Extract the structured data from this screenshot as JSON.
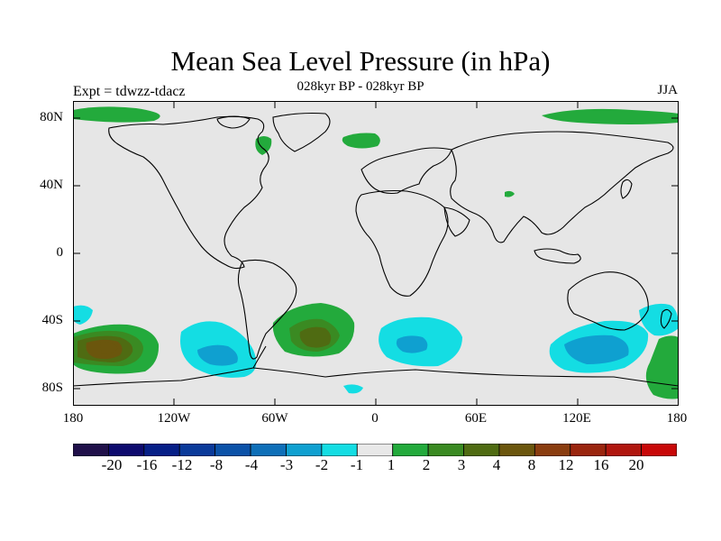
{
  "header": {
    "title": "Mean Sea Level Pressure (in hPa)",
    "subtitle": "028kyr BP - 028kyr BP",
    "left_label": "Expt = tdwzz-tdacz",
    "right_label": "JJA"
  },
  "axes": {
    "y_ticks": [
      "80N",
      "40N",
      "0",
      "40S",
      "80S"
    ],
    "x_ticks": [
      "180",
      "120W",
      "60W",
      "0",
      "60E",
      "120E",
      "180"
    ]
  },
  "colorbar": {
    "colors": [
      "#20104a",
      "#0d0a6e",
      "#061f87",
      "#0a3a9a",
      "#0b52a8",
      "#0e6fb8",
      "#0fa0d0",
      "#14dde3",
      "#e8e8e8",
      "#23aa3c",
      "#3a8a22",
      "#4f6b12",
      "#6b560d",
      "#8a3d0f",
      "#9a250e",
      "#b0160e",
      "#c80808"
    ],
    "labels": [
      "-20",
      "-16",
      "-12",
      "-8",
      "-4",
      "-3",
      "-2",
      "-1",
      "1",
      "2",
      "3",
      "4",
      "8",
      "12",
      "16",
      "20"
    ]
  },
  "map": {
    "background_color": "#e6e6e6",
    "anomaly_colors": {
      "cyan": "#14dde3",
      "blue": "#0fa0d0",
      "green": "#23aa3c",
      "dark_green": "#3a8a22",
      "olive": "#4f6b12",
      "brown": "#6b560d"
    }
  }
}
